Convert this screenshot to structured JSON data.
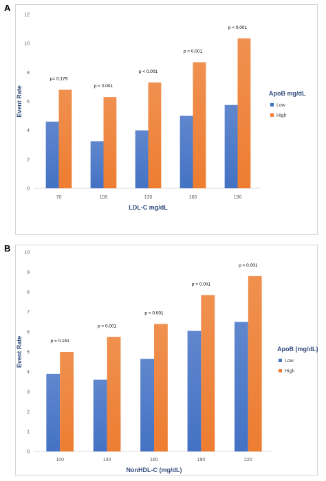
{
  "chart_data": [
    {
      "panel": "A",
      "type": "bar",
      "categories": [
        "70",
        "100",
        "130",
        "160",
        "190"
      ],
      "series": [
        {
          "name": "Low",
          "values": [
            4.6,
            3.25,
            4.0,
            5.0,
            5.75
          ]
        },
        {
          "name": "High",
          "values": [
            6.8,
            6.3,
            7.3,
            8.7,
            10.35
          ]
        }
      ],
      "annotations": [
        "p= 0.179",
        "p < 0.001",
        "p < 0.001",
        "p < 0.001",
        "p < 0.001"
      ],
      "xlabel": "LDL-C mg/dL",
      "ylabel": "Event Rate",
      "ylim": [
        0,
        12
      ],
      "yticks": [
        "0",
        "2",
        "4",
        "6",
        "8",
        "10",
        "12"
      ],
      "legend_title": "ApoB mg/dL",
      "legend_placement": "right",
      "grid": false,
      "colors": {
        "Low": "#4472c4",
        "High": "#ed7d31"
      }
    },
    {
      "panel": "B",
      "type": "bar",
      "categories": [
        "100",
        "130",
        "160",
        "190",
        "220"
      ],
      "series": [
        {
          "name": "Low",
          "values": [
            3.9,
            3.6,
            4.65,
            6.05,
            6.5
          ]
        },
        {
          "name": "High",
          "values": [
            5.0,
            5.75,
            6.4,
            7.85,
            8.8
          ]
        }
      ],
      "annotations": [
        "p = 0.151",
        "p < 0.001",
        "p < 0.001",
        "p < 0.001",
        "p < 0.001"
      ],
      "xlabel": "NonHDL-C (mg/dL)",
      "ylabel": "Event Rate",
      "ylim": [
        0,
        10
      ],
      "yticks": [
        "0",
        "1",
        "2",
        "3",
        "4",
        "5",
        "6",
        "7",
        "8",
        "9",
        "10"
      ],
      "legend_title": "ApoB (mg/dL)",
      "legend_placement": "right",
      "grid": false,
      "colors": {
        "Low": "#4472c4",
        "High": "#ed7d31"
      }
    }
  ]
}
